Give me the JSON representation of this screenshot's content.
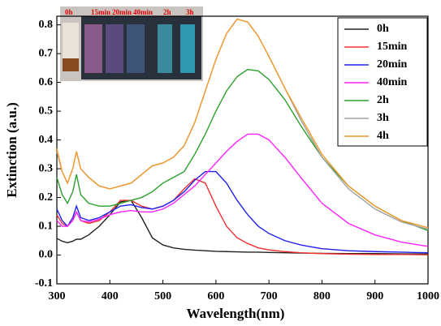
{
  "chart_data": {
    "type": "line",
    "xlabel": "Wavelength(nm)",
    "ylabel": "Extinction (a.u.)",
    "xlim": [
      300,
      1000
    ],
    "ylim": [
      -0.1,
      0.83
    ],
    "xticks": [
      300,
      400,
      500,
      600,
      700,
      800,
      900,
      1000
    ],
    "yticks": [
      -0.1,
      {
        "value": 0,
        "label": "0.0"
      },
      0.1,
      0.2,
      0.3,
      0.4,
      0.5,
      0.6,
      0.7,
      0.8
    ],
    "legend": "upper right",
    "inset_labels": [
      "0h",
      "15min",
      "20min",
      "40min",
      "2h",
      "3h"
    ],
    "x": [
      300,
      310,
      320,
      330,
      337,
      345,
      360,
      380,
      400,
      420,
      440,
      460,
      480,
      500,
      520,
      540,
      560,
      580,
      600,
      620,
      640,
      660,
      680,
      700,
      730,
      760,
      800,
      850,
      900,
      950,
      1000
    ],
    "series": [
      {
        "name": "0h",
        "color": "#222222",
        "values": [
          0.058,
          0.048,
          0.043,
          0.048,
          0.055,
          0.055,
          0.07,
          0.1,
          0.14,
          0.185,
          0.19,
          0.13,
          0.06,
          0.035,
          0.025,
          0.02,
          0.017,
          0.015,
          0.013,
          0.012,
          0.011,
          0.01,
          0.01,
          0.009,
          0.008,
          0.007,
          0.006,
          0.005,
          0.005,
          0.004,
          0.004
        ]
      },
      {
        "name": "15min",
        "color": "#f03030",
        "values": [
          0.14,
          0.11,
          0.1,
          0.12,
          0.15,
          0.12,
          0.11,
          0.12,
          0.15,
          0.19,
          0.19,
          0.17,
          0.16,
          0.17,
          0.19,
          0.23,
          0.265,
          0.25,
          0.17,
          0.1,
          0.06,
          0.04,
          0.025,
          0.018,
          0.012,
          0.008,
          0.005,
          0.003,
          0.002,
          0.002,
          0.001
        ]
      },
      {
        "name": "20min",
        "color": "#2020ee",
        "values": [
          0.16,
          0.12,
          0.1,
          0.13,
          0.17,
          0.13,
          0.12,
          0.13,
          0.15,
          0.17,
          0.175,
          0.165,
          0.16,
          0.17,
          0.19,
          0.22,
          0.26,
          0.29,
          0.29,
          0.25,
          0.19,
          0.14,
          0.1,
          0.075,
          0.05,
          0.035,
          0.022,
          0.015,
          0.012,
          0.01,
          0.008
        ]
      },
      {
        "name": "40min",
        "color": "#ff22ff",
        "values": [
          0.12,
          0.1,
          0.1,
          0.12,
          0.15,
          0.12,
          0.115,
          0.125,
          0.14,
          0.15,
          0.155,
          0.15,
          0.15,
          0.16,
          0.18,
          0.21,
          0.24,
          0.28,
          0.32,
          0.36,
          0.395,
          0.42,
          0.42,
          0.4,
          0.34,
          0.27,
          0.18,
          0.11,
          0.07,
          0.045,
          0.03
        ]
      },
      {
        "name": "2h",
        "color": "#2ca02c",
        "values": [
          0.27,
          0.21,
          0.18,
          0.22,
          0.28,
          0.21,
          0.18,
          0.17,
          0.17,
          0.18,
          0.19,
          0.2,
          0.22,
          0.25,
          0.27,
          0.29,
          0.35,
          0.42,
          0.5,
          0.57,
          0.62,
          0.645,
          0.64,
          0.61,
          0.54,
          0.45,
          0.34,
          0.24,
          0.17,
          0.12,
          0.085
        ]
      },
      {
        "name": "3h",
        "color": "#a0a0a0",
        "values": [
          0.36,
          0.29,
          0.25,
          0.3,
          0.36,
          0.3,
          0.27,
          0.24,
          0.23,
          0.24,
          0.25,
          0.28,
          0.31,
          0.32,
          0.34,
          0.38,
          0.46,
          0.57,
          0.68,
          0.77,
          0.82,
          0.81,
          0.76,
          0.69,
          0.58,
          0.47,
          0.34,
          0.23,
          0.16,
          0.115,
          0.09
        ]
      },
      {
        "name": "4h",
        "color": "#f39a2a",
        "values": [
          0.37,
          0.29,
          0.25,
          0.3,
          0.36,
          0.3,
          0.27,
          0.24,
          0.23,
          0.24,
          0.25,
          0.28,
          0.31,
          0.32,
          0.34,
          0.38,
          0.46,
          0.57,
          0.68,
          0.77,
          0.82,
          0.81,
          0.76,
          0.69,
          0.58,
          0.48,
          0.35,
          0.24,
          0.17,
          0.12,
          0.095
        ]
      }
    ]
  }
}
